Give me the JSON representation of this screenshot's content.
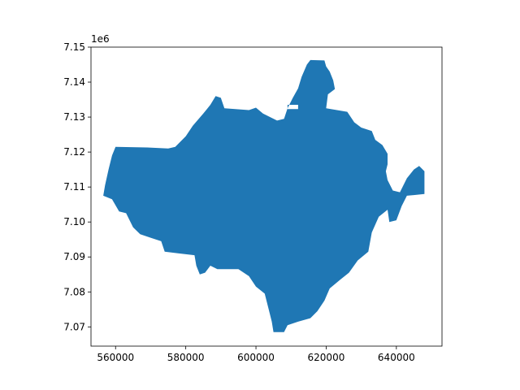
{
  "map": {
    "type": "choropleth-polygon",
    "fill_color": "#1f77b4",
    "offset_label": "1e6",
    "x_ticks": [
      "560000",
      "580000",
      "600000",
      "620000",
      "640000"
    ],
    "y_ticks": [
      "7.07",
      "7.08",
      "7.09",
      "7.10",
      "7.11",
      "7.12",
      "7.13",
      "7.14",
      "7.15"
    ],
    "xlim": [
      553000,
      653000
    ],
    "ylim": [
      7.0645,
      7.15
    ],
    "grid": false,
    "legend": "none",
    "outline": [
      [
        560000,
        7.1215
      ],
      [
        569000,
        7.1213
      ],
      [
        575000,
        7.121
      ],
      [
        577000,
        7.1215
      ],
      [
        580000,
        7.1245
      ],
      [
        582000,
        7.1275
      ],
      [
        585000,
        7.131
      ],
      [
        587000,
        7.1335
      ],
      [
        588500,
        7.136
      ],
      [
        590000,
        7.1355
      ],
      [
        591000,
        7.1325
      ],
      [
        598000,
        7.132
      ],
      [
        600000,
        7.1327
      ],
      [
        602000,
        7.131
      ],
      [
        606000,
        7.129
      ],
      [
        608000,
        7.1295
      ],
      [
        609000,
        7.1325
      ],
      [
        610500,
        7.1355
      ],
      [
        612000,
        7.1382
      ],
      [
        613000,
        7.1415
      ],
      [
        614500,
        7.145
      ],
      [
        615500,
        7.1463
      ],
      [
        619500,
        7.1462
      ],
      [
        620000,
        7.1445
      ],
      [
        621000,
        7.143
      ],
      [
        622000,
        7.1405
      ],
      [
        622500,
        7.138
      ],
      [
        620500,
        7.1365
      ],
      [
        620000,
        7.1325
      ],
      [
        626000,
        7.1315
      ],
      [
        628000,
        7.1285
      ],
      [
        630000,
        7.127
      ],
      [
        633000,
        7.126
      ],
      [
        634000,
        7.1235
      ],
      [
        636000,
        7.122
      ],
      [
        637500,
        7.1195
      ],
      [
        637500,
        7.1165
      ],
      [
        637000,
        7.1145
      ],
      [
        637500,
        7.112
      ],
      [
        639000,
        7.109
      ],
      [
        641000,
        7.1085
      ],
      [
        643000,
        7.1125
      ],
      [
        645000,
        7.115
      ],
      [
        646500,
        7.116
      ],
      [
        648000,
        7.1145
      ],
      [
        648000,
        7.108
      ],
      [
        643000,
        7.1075
      ],
      [
        641500,
        7.1045
      ],
      [
        640000,
        7.1005
      ],
      [
        638000,
        7.1
      ],
      [
        637500,
        7.1035
      ],
      [
        635000,
        7.1015
      ],
      [
        633000,
        7.097
      ],
      [
        632000,
        7.0915
      ],
      [
        629000,
        7.089
      ],
      [
        626500,
        7.0855
      ],
      [
        624000,
        7.0835
      ],
      [
        621000,
        7.081
      ],
      [
        619500,
        7.0775
      ],
      [
        617500,
        7.0745
      ],
      [
        615500,
        7.0725
      ],
      [
        612000,
        7.0715
      ],
      [
        609000,
        7.0705
      ],
      [
        608000,
        7.0685
      ],
      [
        605000,
        7.0685
      ],
      [
        604500,
        7.0715
      ],
      [
        603500,
        7.0755
      ],
      [
        602500,
        7.0795
      ],
      [
        600000,
        7.0815
      ],
      [
        598000,
        7.0845
      ],
      [
        595000,
        7.0865
      ],
      [
        591000,
        7.0865
      ],
      [
        589000,
        7.0865
      ],
      [
        587000,
        7.0875
      ],
      [
        585500,
        7.0855
      ],
      [
        584000,
        7.085
      ],
      [
        583000,
        7.0875
      ],
      [
        582500,
        7.0905
      ],
      [
        578000,
        7.091
      ],
      [
        574000,
        7.0915
      ],
      [
        573000,
        7.0945
      ],
      [
        570000,
        7.0955
      ],
      [
        567000,
        7.0965
      ],
      [
        565000,
        7.0985
      ],
      [
        563000,
        7.1025
      ],
      [
        561000,
        7.103
      ],
      [
        559000,
        7.1065
      ],
      [
        556500,
        7.1075
      ],
      [
        557000,
        7.1105
      ],
      [
        558000,
        7.115
      ],
      [
        559000,
        7.119
      ]
    ],
    "hole": [
      [
        609000,
        7.1335
      ],
      [
        612000,
        7.1335
      ],
      [
        612000,
        7.1323
      ],
      [
        609000,
        7.1323
      ]
    ]
  }
}
